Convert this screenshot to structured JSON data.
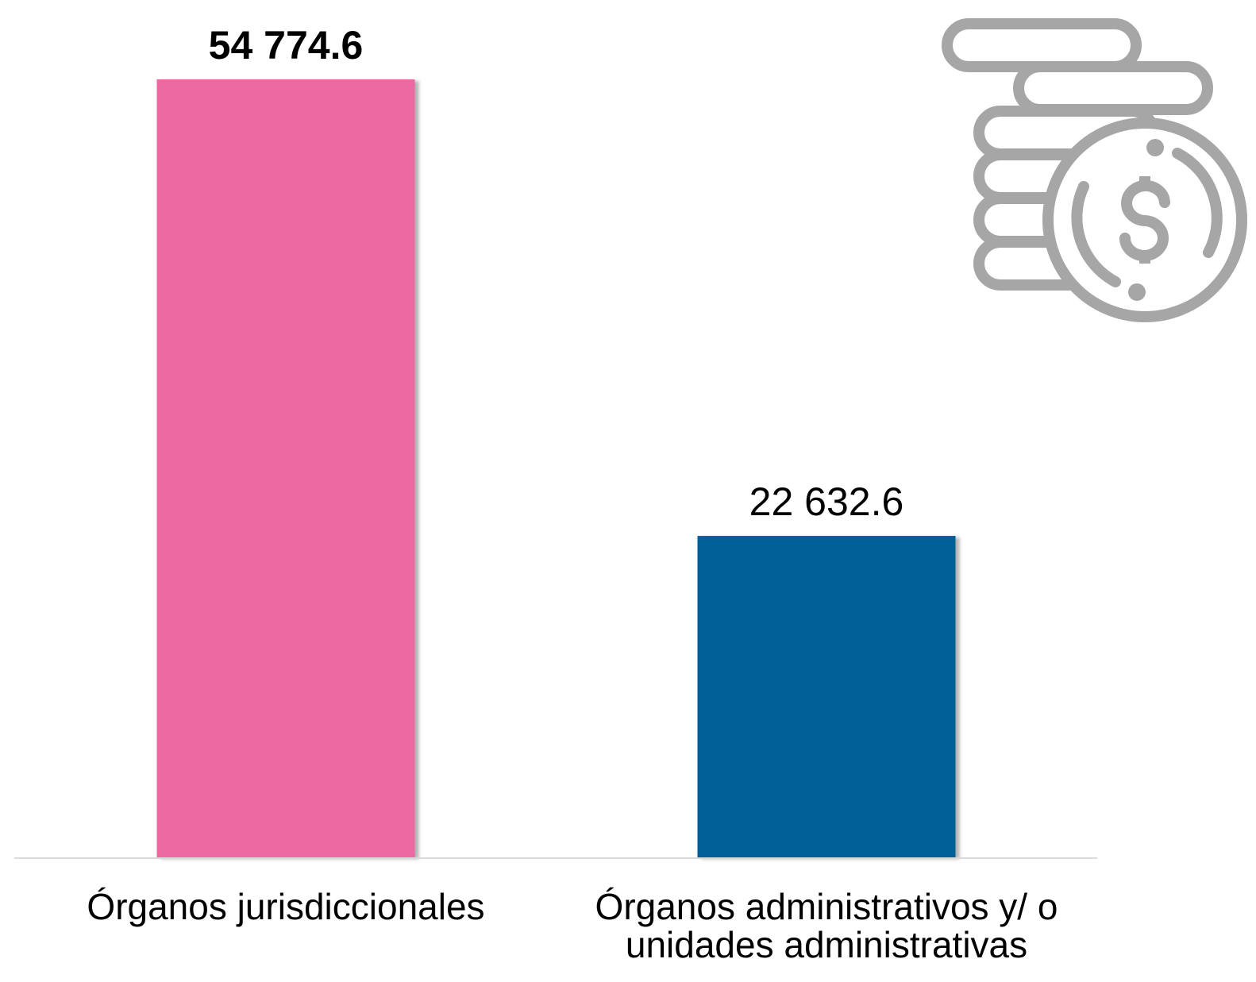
{
  "chart_data": {
    "type": "bar",
    "categories": [
      "Órganos jurisdiccionales",
      "Órganos administrativos y/ o unidades administrativas"
    ],
    "values": [
      54774.6,
      22632.6
    ],
    "value_labels": [
      "54 774.6",
      "22 632.6"
    ],
    "colors": [
      "#ec68a0",
      "#006098"
    ]
  }
}
